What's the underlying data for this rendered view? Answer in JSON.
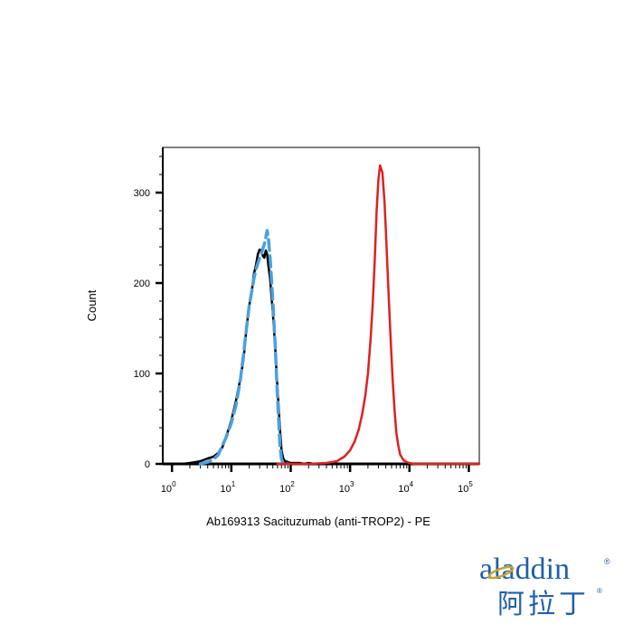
{
  "chart_data": {
    "type": "line",
    "title": "",
    "xlabel": "Ab169313 Sacituzumab (anti-TROP2) - PE",
    "ylabel": "Count",
    "x_scale": "log",
    "xlim": [
      0.7,
      150000
    ],
    "ylim": [
      0,
      350
    ],
    "grid": false,
    "y_ticks": [
      0,
      100,
      200,
      300
    ],
    "x_ticks": [
      {
        "value": 1,
        "base": "10",
        "exp": "0"
      },
      {
        "value": 10,
        "base": "10",
        "exp": "1"
      },
      {
        "value": 100,
        "base": "10",
        "exp": "2"
      },
      {
        "value": 1000,
        "base": "10",
        "exp": "3"
      },
      {
        "value": 10000,
        "base": "10",
        "exp": "4"
      },
      {
        "value": 100000,
        "base": "10",
        "exp": "5"
      }
    ],
    "series": [
      {
        "color": "#000000",
        "style": "solid",
        "x": [
          1.5,
          2,
          2.5,
          3,
          4,
          5,
          6,
          7,
          8,
          10,
          12,
          14,
          16,
          18,
          20,
          22,
          24,
          26,
          28,
          30,
          32,
          34,
          36,
          38,
          40,
          42,
          45,
          48,
          50,
          52,
          55,
          58,
          62,
          66,
          70,
          75,
          80,
          90,
          100,
          120,
          140,
          170,
          200,
          250,
          400,
          1000
        ],
        "y": [
          0,
          1,
          2,
          3,
          6,
          8,
          12,
          18,
          28,
          48,
          70,
          92,
          115,
          150,
          175,
          190,
          210,
          220,
          232,
          237,
          236,
          230,
          228,
          236,
          232,
          220,
          205,
          182,
          168,
          152,
          128,
          100,
          68,
          38,
          15,
          6,
          3,
          2,
          1,
          1,
          1,
          0,
          1,
          0,
          0,
          0
        ]
      },
      {
        "color": "#4aa0e0",
        "style": "dashed",
        "x": [
          3,
          4,
          5,
          6,
          7,
          8,
          10,
          12,
          14,
          16,
          18,
          20,
          22,
          24,
          26,
          28,
          30,
          32,
          34,
          36,
          38,
          40,
          42,
          45,
          48,
          50,
          52,
          55,
          58,
          62,
          66,
          70,
          75,
          80,
          90
        ],
        "y": [
          0,
          2,
          5,
          10,
          20,
          28,
          45,
          65,
          90,
          120,
          150,
          175,
          190,
          205,
          215,
          222,
          228,
          232,
          238,
          243,
          250,
          258,
          250,
          228,
          200,
          180,
          160,
          130,
          95,
          55,
          20,
          5,
          1,
          0,
          0
        ]
      },
      {
        "color": "#e02020",
        "style": "solid",
        "x": [
          60,
          100,
          200,
          400,
          600,
          800,
          1000,
          1200,
          1400,
          1600,
          1800,
          2000,
          2200,
          2400,
          2600,
          2800,
          3000,
          3200,
          3500,
          3800,
          4000,
          4400,
          4800,
          5200,
          5600,
          6000,
          6500,
          7000,
          8000,
          9000,
          10000,
          12000,
          20000,
          50000,
          150000
        ],
        "y": [
          0,
          0,
          0,
          1,
          3,
          8,
          15,
          25,
          38,
          55,
          75,
          100,
          135,
          175,
          225,
          280,
          315,
          330,
          322,
          290,
          258,
          195,
          140,
          95,
          60,
          35,
          20,
          10,
          4,
          2,
          1,
          0,
          0,
          0,
          0
        ]
      }
    ]
  },
  "logo": {
    "text": "aladdin",
    "registered": "®",
    "chinese": "阿拉丁",
    "color": "#1f5fae",
    "accent_color": "#c8a227"
  }
}
